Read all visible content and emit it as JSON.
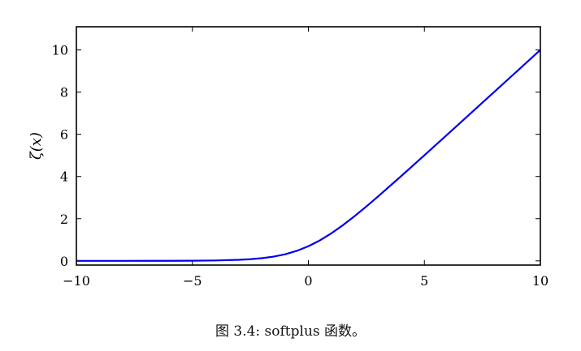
{
  "caption": "图 3.4: softplus 函数。",
  "chart_data": {
    "type": "line",
    "title": "",
    "xlabel": "",
    "ylabel": "ζ(x)",
    "xlim": [
      -10,
      10
    ],
    "ylim": [
      -0.2,
      11.1
    ],
    "x_ticks": [
      -10,
      -5,
      0,
      5,
      10
    ],
    "x_tick_labels": [
      "−10",
      "−5",
      "0",
      "5",
      "10"
    ],
    "y_ticks": [
      0,
      2,
      4,
      6,
      8,
      10
    ],
    "y_tick_labels": [
      "0",
      "2",
      "4",
      "6",
      "8",
      "10"
    ],
    "grid": false,
    "legend": "none",
    "series": [
      {
        "color": "#0000ee",
        "x": [
          -10,
          -9,
          -8,
          -7,
          -6,
          -5,
          -4,
          -3,
          -2.5,
          -2,
          -1.5,
          -1,
          -0.5,
          0,
          0.5,
          1,
          1.5,
          2,
          2.5,
          3,
          4,
          5,
          6,
          7,
          8,
          9,
          10
        ],
        "y": [
          5e-05,
          0.00012,
          0.00034,
          0.0009,
          0.0025,
          0.0067,
          0.018,
          0.049,
          0.079,
          0.127,
          0.201,
          0.313,
          0.474,
          0.693,
          0.974,
          1.313,
          1.701,
          2.127,
          2.579,
          3.049,
          4.018,
          5.007,
          6.002,
          7.001,
          8.0,
          9.0,
          10.0
        ]
      }
    ]
  }
}
